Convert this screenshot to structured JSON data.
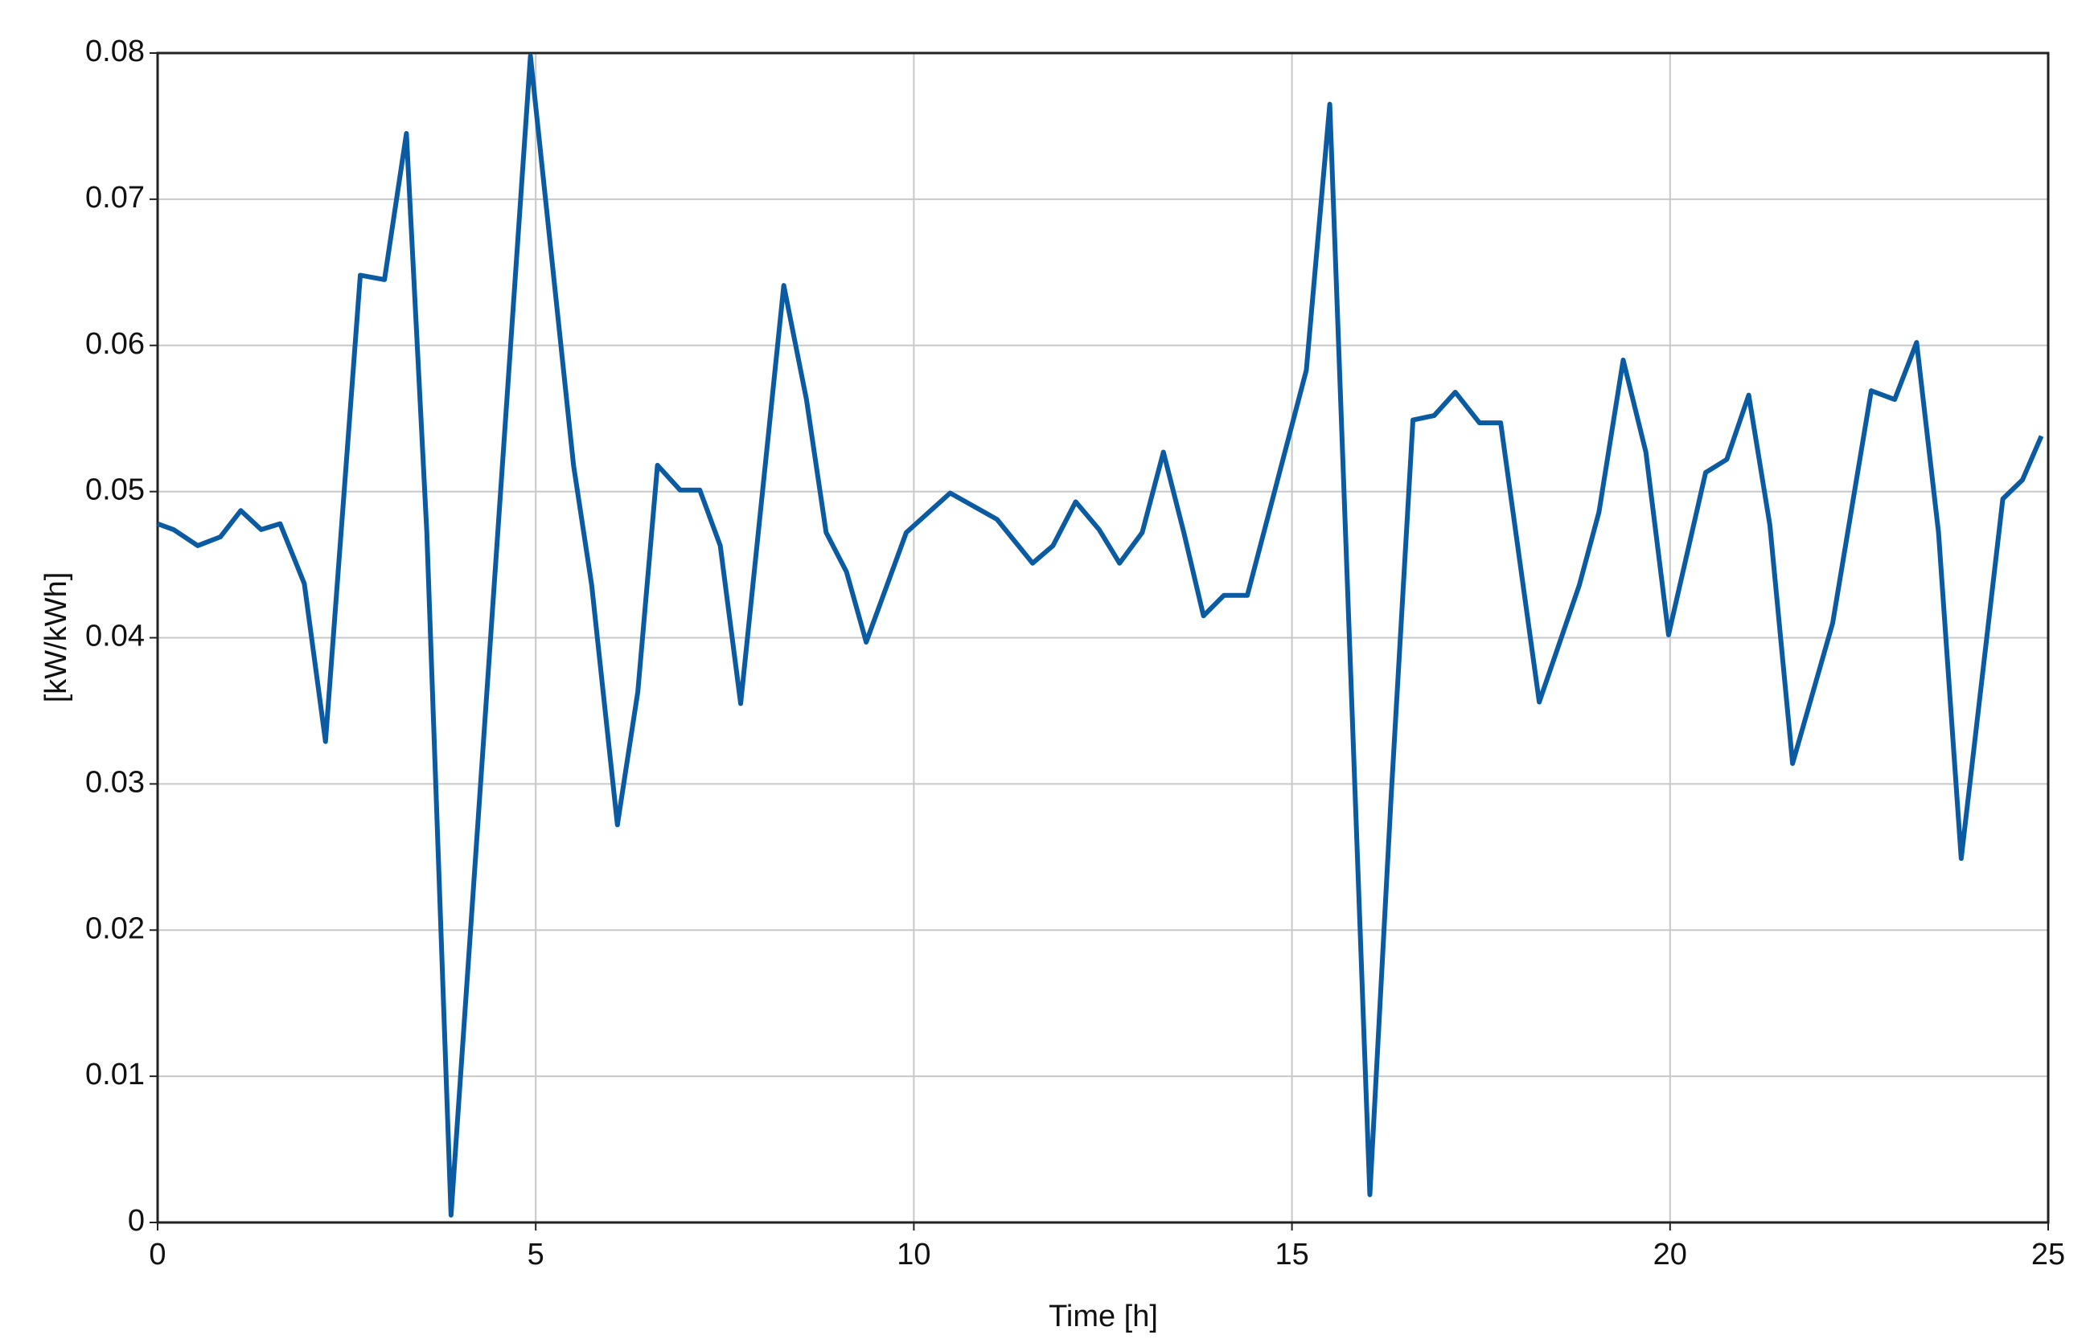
{
  "chart_data": {
    "type": "line",
    "x_label": "Time [h]",
    "y_label": "[kW/kWh]",
    "x": [
      0,
      0.21,
      0.53,
      0.83,
      1.1,
      1.37,
      1.62,
      1.94,
      2.22,
      2.68,
      3.0,
      3.29,
      3.56,
      3.88,
      4.93,
      5.5,
      5.74,
      6.08,
      6.35,
      6.61,
      6.91,
      7.17,
      7.44,
      7.71,
      8.28,
      8.58,
      8.84,
      9.11,
      9.37,
      9.9,
      10.48,
      11.1,
      11.57,
      11.84,
      12.14,
      12.45,
      12.72,
      13.02,
      13.3,
      13.57,
      13.83,
      14.1,
      14.41,
      15.19,
      15.5,
      16.03,
      16.31,
      16.6,
      16.88,
      17.16,
      17.48,
      17.76,
      18.27,
      18.8,
      19.06,
      19.38,
      19.68,
      19.98,
      20.47,
      20.75,
      21.04,
      21.32,
      21.62,
      22.15,
      22.66,
      22.97,
      23.26,
      23.55,
      23.85,
      24.4,
      24.66,
      24.91
    ],
    "series": [
      {
        "color": "#0b5ba3",
        "values": [
          0.0478,
          0.0474,
          0.0463,
          0.0469,
          0.0487,
          0.0474,
          0.0478,
          0.0437,
          0.0329,
          0.0648,
          0.0645,
          0.0745,
          0.0472,
          0.0005,
          0.0798,
          0.0518,
          0.0436,
          0.0272,
          0.0363,
          0.0518,
          0.0501,
          0.0501,
          0.0463,
          0.0355,
          0.0641,
          0.0563,
          0.0472,
          0.0445,
          0.0397,
          0.0472,
          0.0499,
          0.0481,
          0.0451,
          0.0463,
          0.0493,
          0.0474,
          0.0451,
          0.0472,
          0.0527,
          0.0472,
          0.0415,
          0.0429,
          0.0429,
          0.0583,
          0.0765,
          0.0019,
          0.029,
          0.0549,
          0.0552,
          0.0568,
          0.0547,
          0.0547,
          0.0356,
          0.0436,
          0.0486,
          0.059,
          0.0527,
          0.0402,
          0.0513,
          0.0522,
          0.0566,
          0.0477,
          0.0314,
          0.041,
          0.0569,
          0.0563,
          0.0602,
          0.0472,
          0.0249,
          0.0495,
          0.0508,
          0.0538
        ]
      }
    ],
    "xlim": [
      0,
      25
    ],
    "xticks": [
      0,
      5,
      10,
      15,
      20,
      25
    ],
    "ylim": [
      0,
      0.08
    ],
    "yticks": [
      0,
      0.01,
      0.02,
      0.03,
      0.04,
      0.05,
      0.06,
      0.07,
      0.08
    ],
    "grid": true
  }
}
